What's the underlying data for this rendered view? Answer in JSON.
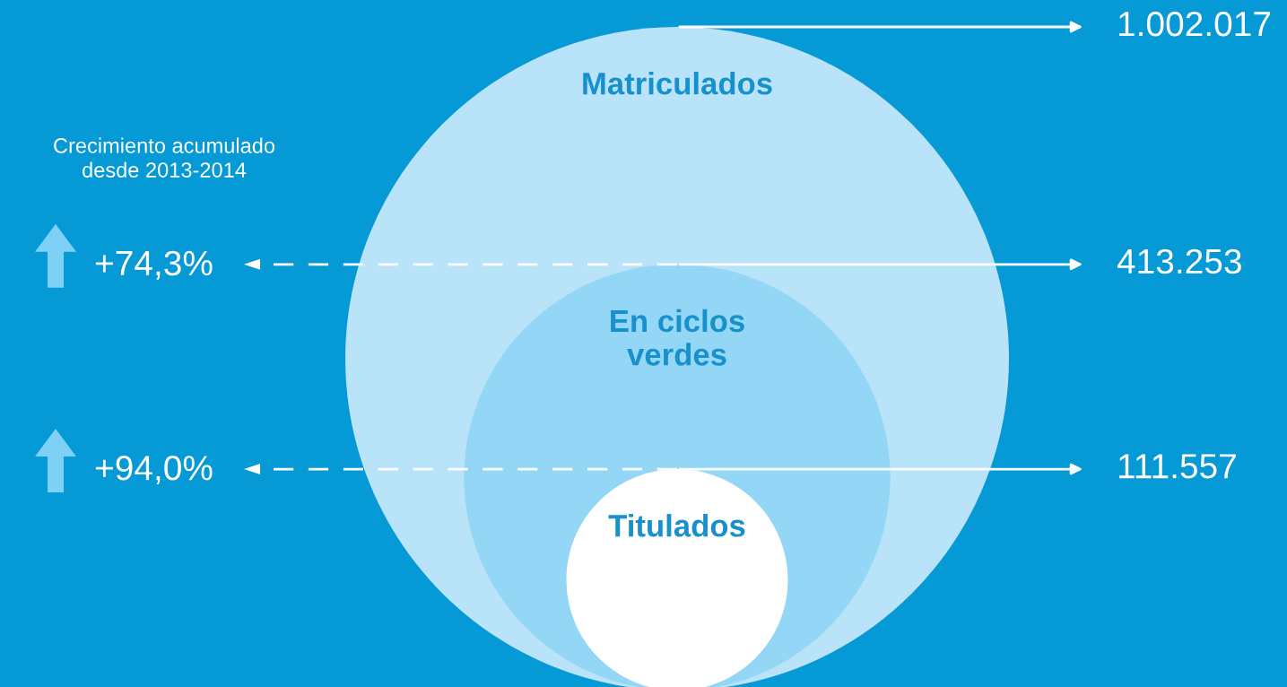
{
  "chart_data": {
    "type": "other",
    "categories": [
      "Matriculados",
      "En ciclos\nverdes",
      "Titulados"
    ],
    "values": [
      1002017,
      413253,
      111557
    ],
    "value_labels": [
      "1.002.017",
      "413.253",
      "111.557"
    ],
    "colors": [
      "#b8e3f8",
      "#93d6f6",
      "#ffffff"
    ],
    "annotations": [
      "Crecimiento acumulado\ndesde 2013-2014",
      "+74,3%",
      "+94,0%"
    ]
  }
}
